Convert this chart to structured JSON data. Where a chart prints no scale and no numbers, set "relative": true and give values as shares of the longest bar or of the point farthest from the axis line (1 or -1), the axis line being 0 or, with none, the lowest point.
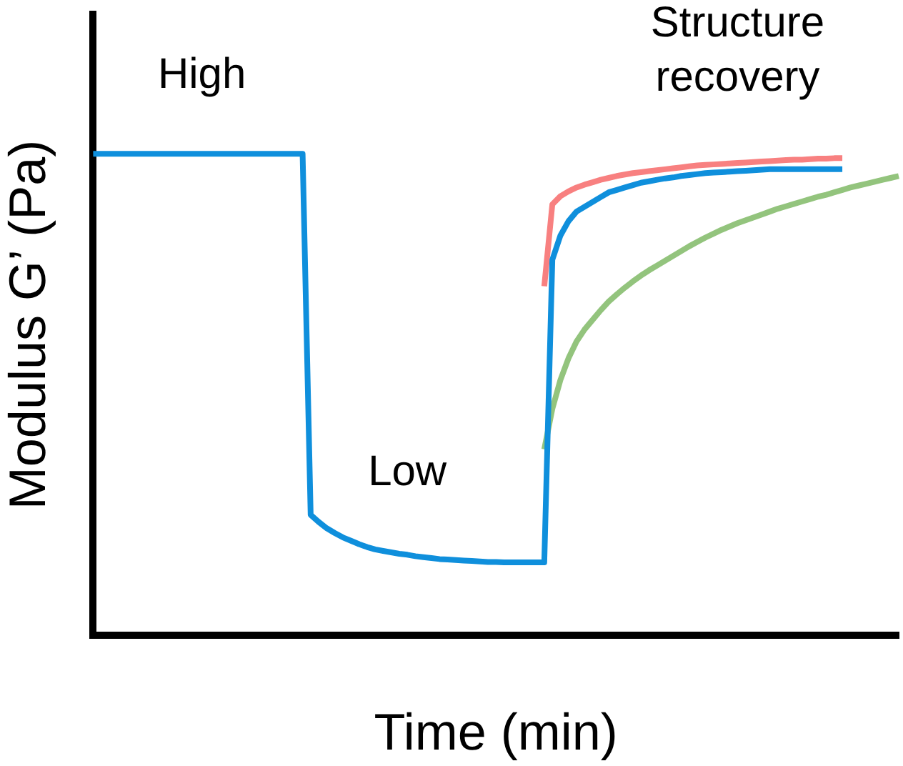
{
  "chart_data": {
    "type": "line",
    "relative": true,
    "xlabel": "Time (min)",
    "ylabel": "Modulus G’ (Pa)",
    "grid": false,
    "legend": false,
    "marker": "none",
    "line_style": "solid",
    "annotations": [
      "High",
      "Low",
      "Structure recovery"
    ],
    "categories": [
      null,
      null,
      null,
      null,
      null,
      null,
      null,
      null,
      null,
      null,
      null,
      null,
      null,
      null,
      null,
      null,
      null,
      null,
      null,
      null,
      null,
      null,
      null,
      null,
      null,
      null,
      null,
      null,
      null,
      null,
      null,
      null,
      null,
      null,
      null,
      null,
      null,
      null,
      null,
      null,
      null,
      null,
      null,
      null,
      null,
      null,
      null,
      null,
      null,
      null,
      null,
      null,
      null,
      null,
      null,
      null,
      null,
      null,
      null,
      null,
      null,
      null,
      null,
      null,
      null,
      null,
      null,
      null,
      null,
      null,
      null,
      null,
      null,
      null,
      null,
      null,
      null,
      null,
      null,
      null,
      null,
      null,
      null,
      null,
      null,
      null,
      null,
      null,
      null,
      null,
      null,
      null,
      null,
      null,
      null,
      null,
      null,
      null,
      null,
      null,
      null
    ],
    "series": [
      {
        "color": "#0f8fdc",
        "values": [
          1,
          1,
          1,
          1,
          1,
          1,
          1,
          1,
          1,
          1,
          1,
          1,
          1,
          1,
          1,
          1,
          1,
          1,
          1,
          1,
          1,
          1,
          1,
          1,
          1,
          1,
          1,
          0.25,
          0.235,
          0.222,
          0.212,
          0.203,
          0.196,
          0.189,
          0.183,
          0.178,
          0.175,
          0.172,
          0.169,
          0.167,
          0.164,
          0.162,
          0.16,
          0.158,
          0.157,
          0.156,
          0.155,
          0.154,
          0.153,
          0.152,
          0.152,
          0.151,
          0.151,
          0.151,
          0.151,
          0.151,
          0.151,
          0.78,
          0.83,
          0.86,
          0.88,
          0.89,
          0.9,
          0.91,
          0.92,
          0.925,
          0.93,
          0.935,
          0.94,
          0.943,
          0.946,
          0.949,
          0.951,
          0.954,
          0.956,
          0.958,
          0.96,
          0.961,
          0.962,
          0.963,
          0.964,
          0.965,
          0.966,
          0.967,
          0.968,
          0.968,
          0.968,
          0.968,
          0.968,
          0.968,
          0.968,
          0.968,
          0.968,
          0.968,
          null,
          null,
          null,
          null,
          null,
          null,
          null
        ]
      },
      {
        "color": "#f88080",
        "values": [
          null,
          null,
          null,
          null,
          null,
          null,
          null,
          null,
          null,
          null,
          null,
          null,
          null,
          null,
          null,
          null,
          null,
          null,
          null,
          null,
          null,
          null,
          null,
          null,
          null,
          null,
          null,
          null,
          null,
          null,
          null,
          null,
          null,
          null,
          null,
          null,
          null,
          null,
          null,
          null,
          null,
          null,
          null,
          null,
          null,
          null,
          null,
          null,
          null,
          null,
          null,
          null,
          null,
          null,
          null,
          null,
          0.725,
          0.895,
          0.912,
          0.922,
          0.93,
          0.936,
          0.941,
          0.946,
          0.95,
          0.954,
          0.957,
          0.96,
          0.962,
          0.964,
          0.966,
          0.968,
          0.97,
          0.972,
          0.974,
          0.976,
          0.977,
          0.978,
          0.979,
          0.98,
          0.981,
          0.982,
          0.983,
          0.984,
          0.985,
          0.986,
          0.987,
          0.988,
          0.988,
          0.989,
          0.99,
          0.99,
          0.991,
          0.991,
          null,
          null,
          null,
          null,
          null,
          null,
          null
        ]
      },
      {
        "color": "#93c47d",
        "values": [
          null,
          null,
          null,
          null,
          null,
          null,
          null,
          null,
          null,
          null,
          null,
          null,
          null,
          null,
          null,
          null,
          null,
          null,
          null,
          null,
          null,
          null,
          null,
          null,
          null,
          null,
          null,
          null,
          null,
          null,
          null,
          null,
          null,
          null,
          null,
          null,
          null,
          null,
          null,
          null,
          null,
          null,
          null,
          null,
          null,
          null,
          null,
          null,
          null,
          null,
          null,
          null,
          null,
          null,
          null,
          null,
          0.386,
          0.47,
          0.53,
          0.575,
          0.61,
          0.635,
          0.655,
          0.675,
          0.693,
          0.708,
          0.722,
          0.735,
          0.747,
          0.758,
          0.768,
          0.778,
          0.788,
          0.798,
          0.808,
          0.817,
          0.826,
          0.834,
          0.842,
          0.849,
          0.856,
          0.862,
          0.868,
          0.874,
          0.88,
          0.886,
          0.891,
          0.896,
          0.901,
          0.906,
          0.911,
          0.915,
          0.92,
          0.925,
          0.93,
          0.934,
          0.938,
          0.942,
          0.946,
          0.95,
          0.954
        ]
      }
    ]
  }
}
